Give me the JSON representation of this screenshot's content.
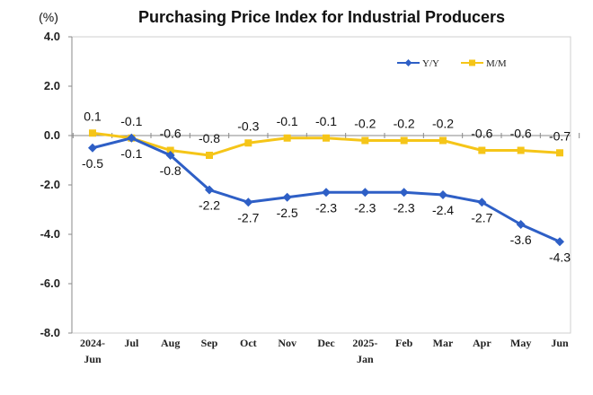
{
  "chart_data": {
    "type": "line",
    "title": "Purchasing Price Index for Industrial Producers",
    "ylabel": "(%)",
    "xlabel": "",
    "categories": [
      "2024-Jun",
      "Jul",
      "Aug",
      "Sep",
      "Oct",
      "Nov",
      "Dec",
      "2025-Jan",
      "Feb",
      "Mar",
      "Apr",
      "May",
      "Jun"
    ],
    "tick_labels": [
      [
        "2024-",
        "Jun"
      ],
      [
        "Jul"
      ],
      [
        "Aug"
      ],
      [
        "Sep"
      ],
      [
        "Oct"
      ],
      [
        "Nov"
      ],
      [
        "Dec"
      ],
      [
        "2025-",
        "Jan"
      ],
      [
        "Feb"
      ],
      [
        "Mar"
      ],
      [
        "Apr"
      ],
      [
        "May"
      ],
      [
        "Jun"
      ]
    ],
    "ylim": [
      -8.0,
      4.0
    ],
    "yticks": [
      4.0,
      2.0,
      0.0,
      -2.0,
      -4.0,
      -6.0,
      -8.0
    ],
    "ytick_labels": [
      "4.0",
      "2.0",
      "0.0",
      "-2.0",
      "-4.0",
      "-6.0",
      "-8.0"
    ],
    "grid": false,
    "legend_position": "top-right",
    "series": [
      {
        "name": "Y/Y",
        "color": "#2E5FC6",
        "marker": "diamond",
        "label_position": "below",
        "values": [
          -0.5,
          -0.1,
          -0.8,
          -2.2,
          -2.7,
          -2.5,
          -2.3,
          -2.3,
          -2.3,
          -2.4,
          -2.7,
          -3.6,
          -4.3
        ],
        "labels": [
          "-0.5",
          "-0.1",
          "-0.8",
          "-2.2",
          "-2.7",
          "-2.5",
          "-2.3",
          "-2.3",
          "-2.3",
          "-2.4",
          "-2.7",
          "-3.6",
          "-4.3"
        ]
      },
      {
        "name": "M/M",
        "color": "#F5C518",
        "marker": "square",
        "label_position": "above",
        "values": [
          0.1,
          -0.1,
          -0.6,
          -0.8,
          -0.3,
          -0.1,
          -0.1,
          -0.2,
          -0.2,
          -0.2,
          -0.6,
          -0.6,
          -0.7
        ],
        "labels": [
          "0.1",
          "-0.1",
          "-0.6",
          "-0.8",
          "-0.3",
          "-0.1",
          "-0.1",
          "-0.2",
          "-0.2",
          "-0.2",
          "-0.6",
          "-0.6",
          "-0.7"
        ]
      }
    ]
  }
}
